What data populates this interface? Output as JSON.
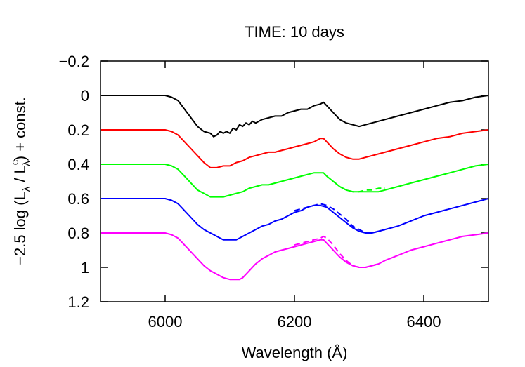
{
  "chart_data": {
    "type": "line",
    "title": "TIME: 10 days",
    "xlabel": "Wavelength (Å)",
    "ylabel_parts": {
      "prefix": "−2.5 log (L",
      "sub1": "λ",
      "mid": " / L",
      "sup": "c",
      "sub2": "λ",
      "suffix": ") + const."
    },
    "xlim": [
      5900,
      6500
    ],
    "ylim": [
      -0.2,
      1.2
    ],
    "y_inverted": true,
    "x_ticks": [
      6000,
      6200,
      6400
    ],
    "x_tick_labels": [
      "6000",
      "6200",
      "6400"
    ],
    "y_ticks": [
      -0.2,
      0,
      0.2,
      0.4,
      0.6,
      0.8,
      1.0,
      1.2
    ],
    "y_tick_labels": [
      "−0.2",
      "0",
      "0.2",
      "0.4",
      "0.6",
      "0.8",
      "1",
      "1.2"
    ],
    "grid": false,
    "series": [
      {
        "color": "#000000",
        "style": "solid",
        "x": [
          5900,
          5960,
          6000,
          6010,
          6020,
          6030,
          6040,
          6050,
          6060,
          6070,
          6075,
          6080,
          6085,
          6090,
          6095,
          6100,
          6105,
          6110,
          6115,
          6120,
          6125,
          6130,
          6135,
          6140,
          6150,
          6160,
          6170,
          6180,
          6190,
          6200,
          6210,
          6220,
          6230,
          6240,
          6245,
          6250,
          6260,
          6270,
          6280,
          6290,
          6300,
          6310,
          6320,
          6340,
          6360,
          6380,
          6400,
          6420,
          6440,
          6460,
          6480,
          6500
        ],
        "y": [
          0.0,
          0.0,
          0.0,
          0.01,
          0.03,
          0.08,
          0.13,
          0.18,
          0.21,
          0.22,
          0.24,
          0.23,
          0.21,
          0.22,
          0.21,
          0.22,
          0.19,
          0.2,
          0.17,
          0.18,
          0.16,
          0.17,
          0.15,
          0.16,
          0.14,
          0.13,
          0.12,
          0.12,
          0.1,
          0.09,
          0.08,
          0.08,
          0.06,
          0.05,
          0.04,
          0.06,
          0.1,
          0.14,
          0.16,
          0.17,
          0.18,
          0.17,
          0.16,
          0.14,
          0.12,
          0.1,
          0.08,
          0.06,
          0.04,
          0.03,
          0.01,
          0.0
        ]
      },
      {
        "color": "#ff0000",
        "style": "solid",
        "x": [
          5900,
          5960,
          6000,
          6010,
          6020,
          6030,
          6040,
          6050,
          6060,
          6070,
          6080,
          6090,
          6100,
          6110,
          6120,
          6130,
          6140,
          6150,
          6160,
          6170,
          6180,
          6190,
          6200,
          6210,
          6220,
          6230,
          6240,
          6245,
          6250,
          6260,
          6270,
          6280,
          6290,
          6300,
          6310,
          6320,
          6340,
          6360,
          6380,
          6400,
          6420,
          6440,
          6460,
          6480,
          6500
        ],
        "y": [
          0.2,
          0.2,
          0.2,
          0.21,
          0.23,
          0.27,
          0.31,
          0.35,
          0.39,
          0.42,
          0.42,
          0.41,
          0.41,
          0.39,
          0.38,
          0.36,
          0.35,
          0.34,
          0.33,
          0.33,
          0.32,
          0.31,
          0.3,
          0.29,
          0.28,
          0.27,
          0.25,
          0.25,
          0.27,
          0.31,
          0.34,
          0.36,
          0.37,
          0.37,
          0.36,
          0.35,
          0.33,
          0.31,
          0.29,
          0.27,
          0.25,
          0.24,
          0.22,
          0.21,
          0.2
        ]
      },
      {
        "color": "#00ff00",
        "style": "solid",
        "x": [
          5900,
          5960,
          6000,
          6010,
          6020,
          6030,
          6040,
          6050,
          6060,
          6070,
          6080,
          6090,
          6100,
          6110,
          6120,
          6130,
          6140,
          6150,
          6160,
          6170,
          6180,
          6190,
          6200,
          6210,
          6220,
          6230,
          6240,
          6245,
          6250,
          6260,
          6270,
          6280,
          6290,
          6300,
          6310,
          6320,
          6330,
          6340,
          6360,
          6380,
          6400,
          6420,
          6440,
          6460,
          6480,
          6500
        ],
        "y": [
          0.4,
          0.4,
          0.4,
          0.41,
          0.43,
          0.47,
          0.51,
          0.55,
          0.57,
          0.59,
          0.59,
          0.59,
          0.58,
          0.57,
          0.56,
          0.54,
          0.53,
          0.52,
          0.52,
          0.51,
          0.5,
          0.49,
          0.48,
          0.47,
          0.46,
          0.45,
          0.45,
          0.45,
          0.47,
          0.5,
          0.53,
          0.55,
          0.56,
          0.56,
          0.56,
          0.56,
          0.56,
          0.55,
          0.53,
          0.51,
          0.49,
          0.47,
          0.45,
          0.43,
          0.41,
          0.4
        ]
      },
      {
        "color": "#00ff00",
        "style": "dashed",
        "x": [
          6260,
          6270,
          6280,
          6290,
          6300,
          6310,
          6320,
          6330,
          6340
        ],
        "y": [
          0.5,
          0.53,
          0.55,
          0.56,
          0.56,
          0.55,
          0.55,
          0.54,
          0.54
        ]
      },
      {
        "color": "#0000ff",
        "style": "solid",
        "x": [
          5900,
          5960,
          6000,
          6010,
          6020,
          6030,
          6040,
          6050,
          6060,
          6070,
          6080,
          6090,
          6100,
          6110,
          6120,
          6130,
          6140,
          6150,
          6160,
          6170,
          6180,
          6190,
          6200,
          6210,
          6220,
          6230,
          6240,
          6250,
          6260,
          6270,
          6280,
          6290,
          6300,
          6310,
          6320,
          6330,
          6340,
          6360,
          6380,
          6400,
          6420,
          6440,
          6460,
          6480,
          6500
        ],
        "y": [
          0.6,
          0.6,
          0.6,
          0.61,
          0.63,
          0.67,
          0.71,
          0.75,
          0.78,
          0.8,
          0.82,
          0.84,
          0.84,
          0.84,
          0.82,
          0.8,
          0.78,
          0.76,
          0.75,
          0.73,
          0.72,
          0.7,
          0.68,
          0.67,
          0.65,
          0.64,
          0.64,
          0.65,
          0.68,
          0.71,
          0.74,
          0.77,
          0.79,
          0.8,
          0.8,
          0.79,
          0.78,
          0.76,
          0.73,
          0.7,
          0.68,
          0.66,
          0.64,
          0.62,
          0.6
        ]
      },
      {
        "color": "#0000ff",
        "style": "dashed",
        "x": [
          6200,
          6210,
          6220,
          6230,
          6240,
          6250,
          6260,
          6270,
          6280,
          6290,
          6300,
          6310,
          6320,
          6330,
          6340
        ],
        "y": [
          0.67,
          0.66,
          0.65,
          0.64,
          0.63,
          0.64,
          0.66,
          0.69,
          0.72,
          0.76,
          0.78,
          0.8,
          0.8,
          0.79,
          0.78
        ]
      },
      {
        "color": "#ff00ff",
        "style": "solid",
        "x": [
          5900,
          5960,
          6000,
          6010,
          6020,
          6030,
          6040,
          6050,
          6060,
          6070,
          6080,
          6090,
          6100,
          6110,
          6115,
          6120,
          6130,
          6140,
          6150,
          6160,
          6170,
          6180,
          6190,
          6200,
          6210,
          6220,
          6230,
          6240,
          6245,
          6250,
          6260,
          6270,
          6280,
          6290,
          6300,
          6310,
          6320,
          6330,
          6340,
          6360,
          6380,
          6400,
          6420,
          6440,
          6460,
          6480,
          6500
        ],
        "y": [
          0.8,
          0.8,
          0.8,
          0.81,
          0.83,
          0.87,
          0.91,
          0.95,
          0.99,
          1.02,
          1.04,
          1.06,
          1.07,
          1.07,
          1.07,
          1.06,
          1.02,
          0.98,
          0.95,
          0.93,
          0.91,
          0.9,
          0.89,
          0.88,
          0.87,
          0.86,
          0.85,
          0.84,
          0.84,
          0.86,
          0.9,
          0.94,
          0.97,
          0.99,
          1.0,
          1.0,
          0.99,
          0.98,
          0.96,
          0.93,
          0.9,
          0.88,
          0.86,
          0.84,
          0.82,
          0.81,
          0.8
        ]
      },
      {
        "color": "#ff00ff",
        "style": "dashed",
        "x": [
          6200,
          6210,
          6220,
          6230,
          6240,
          6245,
          6250,
          6260,
          6270,
          6280,
          6290,
          6300,
          6310,
          6320,
          6330
        ],
        "y": [
          0.87,
          0.86,
          0.85,
          0.84,
          0.83,
          0.82,
          0.83,
          0.87,
          0.92,
          0.96,
          0.99,
          1.0,
          1.0,
          0.99,
          0.98
        ]
      }
    ]
  }
}
